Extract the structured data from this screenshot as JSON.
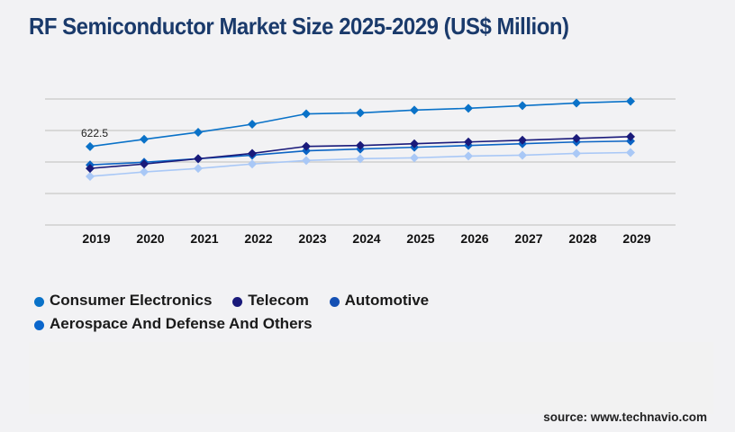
{
  "title": "RF Semiconductor Market Size 2025-2029 (US$ Million)",
  "source": "source: www.technavio.com",
  "chart_data": {
    "type": "line",
    "title": "RF Semiconductor Market Size 2025-2029 (US$ Million)",
    "xlabel": "",
    "ylabel": "",
    "x": [
      "2019",
      "2020",
      "2021",
      "2022",
      "2023",
      "2024",
      "2025",
      "2026",
      "2027",
      "2028",
      "2029"
    ],
    "ylim": [
      0,
      1000
    ],
    "y_gridlines": [
      0,
      250,
      500,
      750,
      1000
    ],
    "y_tick_labels_shown": false,
    "grid": true,
    "legend_position": "bottom-left",
    "annotations": [
      {
        "series": "Consumer Electronics",
        "x": "2019",
        "text": "622.5"
      }
    ],
    "series": [
      {
        "name": "Consumer Electronics",
        "color": "#0a72c8",
        "marker": "diamond",
        "values": [
          622.5,
          680,
          736,
          800,
          882,
          890,
          912,
          926,
          947,
          968,
          982
        ]
      },
      {
        "name": "Telecom",
        "color": "#1a1a7a",
        "marker": "diamond",
        "values": [
          449,
          484,
          526,
          568,
          624,
          631,
          645,
          659,
          673,
          687,
          701
        ]
      },
      {
        "name": "Automotive",
        "color": "#0b64c4",
        "marker": "diamond",
        "values": [
          477,
          498,
          526,
          554,
          589,
          603,
          617,
          631,
          645,
          659,
          666
        ]
      },
      {
        "name": "Aerospace And Defense And Others",
        "color": "#a9c8f6",
        "marker": "diamond",
        "values": [
          386,
          421,
          449,
          484,
          512,
          526,
          533,
          547,
          554,
          568,
          575
        ]
      }
    ]
  },
  "legend": [
    {
      "label": "Consumer Electronics",
      "color": "#0a72c8"
    },
    {
      "label": "Telecom",
      "color": "#1a1a7a"
    },
    {
      "label": "Automotive",
      "color": "#1450b4"
    },
    {
      "label": "Aerospace And Defense And Others",
      "color": "#0a66cc"
    }
  ]
}
